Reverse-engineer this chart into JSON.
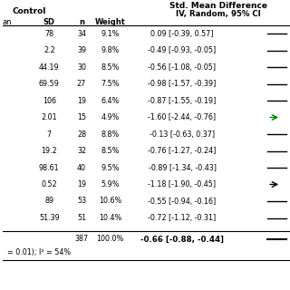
{
  "title_left": "Control",
  "title_right": "Std. Mean Difference",
  "subtitle_right": "IV, Random, 95% CI",
  "col_headers": [
    "an",
    "SD",
    "n",
    "Weight",
    "IV, Random, 95% CI"
  ],
  "rows": [
    {
      "sd": "78",
      "n": "34",
      "weight": "9.1%",
      "smd": "0.09 [-0.39, 0.57]",
      "mean": 0.09,
      "lo": -0.39,
      "hi": 0.57,
      "arrow": null
    },
    {
      "sd": "2.2",
      "n": "39",
      "weight": "9.8%",
      "smd": "-0.49 [-0.93, -0.05]",
      "mean": -0.49,
      "lo": -0.93,
      "hi": -0.05,
      "arrow": null
    },
    {
      "sd": "44.19",
      "n": "30",
      "weight": "8.5%",
      "smd": "-0.56 [-1.08, -0.05]",
      "mean": -0.56,
      "lo": -1.08,
      "hi": -0.05,
      "arrow": null
    },
    {
      "sd": "69.59",
      "n": "27",
      "weight": "7.5%",
      "smd": "-0.98 [-1.57, -0.39]",
      "mean": -0.98,
      "lo": -1.57,
      "hi": -0.39,
      "arrow": null
    },
    {
      "sd": "106",
      "n": "19",
      "weight": "6.4%",
      "smd": "-0.87 [-1.55, -0.19]",
      "mean": -0.87,
      "lo": -1.55,
      "hi": -0.19,
      "arrow": null
    },
    {
      "sd": "2.01",
      "n": "15",
      "weight": "4.9%",
      "smd": "-1.60 [-2.44, -0.76]",
      "mean": -1.6,
      "lo": -2.44,
      "hi": -0.76,
      "arrow": "green"
    },
    {
      "sd": "7",
      "n": "28",
      "weight": "8.8%",
      "smd": "-0.13 [-0.63, 0.37]",
      "mean": -0.13,
      "lo": -0.63,
      "hi": 0.37,
      "arrow": null
    },
    {
      "sd": "19.2",
      "n": "32",
      "weight": "8.5%",
      "smd": "-0.76 [-1.27, -0.24]",
      "mean": -0.76,
      "lo": -1.27,
      "hi": -0.24,
      "arrow": null
    },
    {
      "sd": "98.61",
      "n": "40",
      "weight": "9.5%",
      "smd": "-0.89 [-1.34, -0.43]",
      "mean": -0.89,
      "lo": -1.34,
      "hi": -0.43,
      "arrow": null
    },
    {
      "sd": "0.52",
      "n": "19",
      "weight": "5.9%",
      "smd": "-1.18 [-1.90, -0.45]",
      "mean": -1.18,
      "lo": -1.9,
      "hi": -0.45,
      "arrow": "black"
    },
    {
      "sd": "89",
      "n": "53",
      "weight": "10.6%",
      "smd": "-0.55 [-0.94, -0.16]",
      "mean": -0.55,
      "lo": -0.94,
      "hi": -0.16,
      "arrow": null
    },
    {
      "sd": "51.39",
      "n": "51",
      "weight": "10.4%",
      "smd": "-0.72 [-1.12, -0.31]",
      "mean": -0.72,
      "lo": -1.12,
      "hi": -0.31,
      "arrow": null
    }
  ],
  "total_n": "387",
  "total_weight": "100.0%",
  "total_smd": "-0.66 [-0.88, -0.44]",
  "total_mean": -0.66,
  "total_lo": -0.88,
  "total_hi": -0.44,
  "footer": "= 0.01); I² = 54%",
  "bg_color": "#ffffff",
  "text_color": "#000000",
  "header_color": "#000000"
}
